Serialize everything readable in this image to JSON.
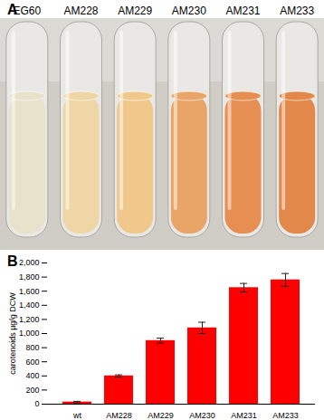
{
  "panel_a": {
    "label": "A",
    "tubes": [
      "EG60",
      "AM228",
      "AM229",
      "AM230",
      "AM231",
      "AM233"
    ],
    "colors": [
      "#e6e2cc",
      "#efd6a6",
      "#f1c88c",
      "#e9a468",
      "#e78f52",
      "#e1884a"
    ]
  },
  "chart_data": {
    "type": "bar",
    "title": "B",
    "y_label": "carotenoids µg/g DCW",
    "categories": [
      "wt",
      "AM228",
      "AM229",
      "AM230",
      "AM231",
      "AM233"
    ],
    "values": [
      30,
      400,
      900,
      1080,
      1650,
      1760
    ],
    "errors": [
      10,
      15,
      35,
      80,
      60,
      90
    ],
    "color": "#ff0000",
    "ylim": [
      0,
      2000
    ],
    "yticks": [
      0,
      200,
      400,
      600,
      800,
      1000,
      1200,
      1400,
      1600,
      1800,
      2000
    ],
    "grid": false
  }
}
